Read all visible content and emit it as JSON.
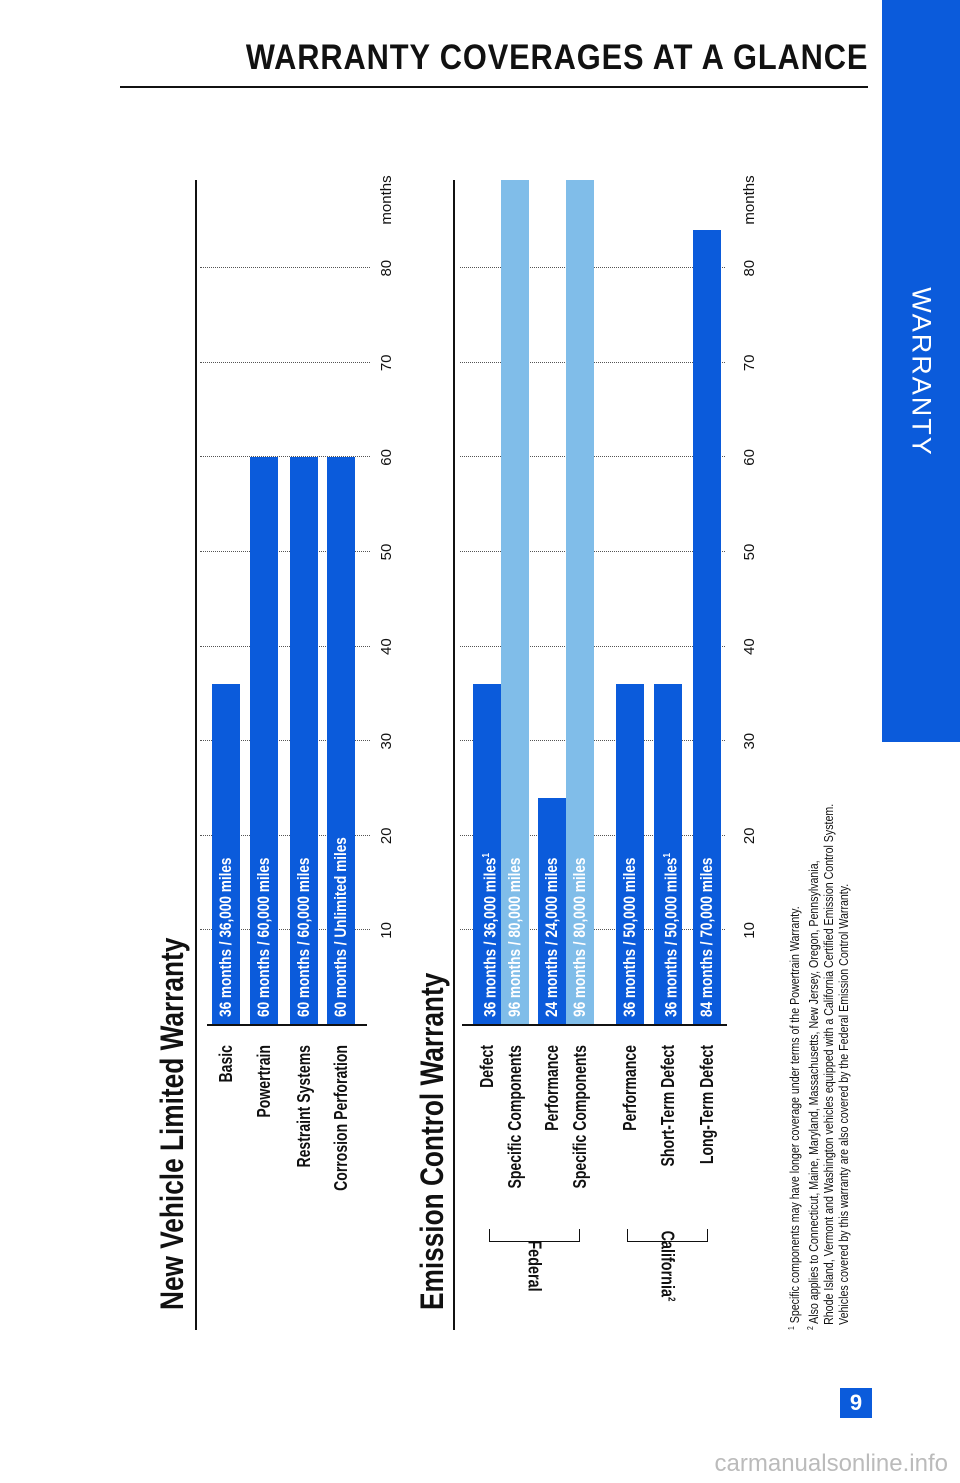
{
  "header": {
    "title": "WARRANTY COVERAGES AT A GLANCE",
    "side_tab": "WARRANTY",
    "page_number": "9"
  },
  "watermark": "carmanualsonline.info",
  "colors": {
    "primary": "#0b5bdb",
    "secondary": "#80bde9"
  },
  "chart_data": [
    {
      "type": "bar",
      "orientation": "horizontal",
      "title": "New Vehicle Limited Warranty",
      "xlabel": "months",
      "xlim": [
        0,
        90
      ],
      "xticks": [
        "10",
        "20",
        "30",
        "40",
        "50",
        "60",
        "70",
        "80"
      ],
      "grid": true,
      "rows": [
        {
          "label": "Basic",
          "months": 36,
          "text": "36 months  /  36,000 miles",
          "note": "",
          "color": "#0b5bdb"
        },
        {
          "label": "Powertrain",
          "months": 60,
          "text": "60 months  /  60,000 miles",
          "note": "",
          "color": "#0b5bdb"
        },
        {
          "label": "Restraint Systems",
          "months": 60,
          "text": "60 months  /  60,000 miles",
          "note": "",
          "color": "#0b5bdb"
        },
        {
          "label": "Corrosion Perforation",
          "months": 60,
          "text": "60 months  /  Unlimited miles",
          "note": "",
          "color": "#0b5bdb"
        }
      ]
    },
    {
      "type": "bar",
      "orientation": "horizontal",
      "title": "Emission Control Warranty",
      "xlabel": "months",
      "xlim": [
        0,
        90
      ],
      "xticks": [
        "10",
        "20",
        "30",
        "40",
        "50",
        "60",
        "70",
        "80"
      ],
      "grid": true,
      "groups": [
        {
          "label": "Federal",
          "note": "",
          "rows": [
            0,
            1,
            2,
            3
          ]
        },
        {
          "label": "California",
          "note": "2",
          "rows": [
            4,
            5,
            6
          ]
        }
      ],
      "rows": [
        {
          "label": "Defect",
          "months": 36,
          "text": "36 months  /  36,000 miles",
          "note": "1",
          "color": "#0b5bdb"
        },
        {
          "label": "Specific Components",
          "months": 96,
          "text": "96 months  /  80,000 miles",
          "note": "",
          "color": "#80bde9"
        },
        {
          "label": "Performance",
          "months": 24,
          "text": "24 months  /  24,000 miles",
          "note": "",
          "color": "#0b5bdb"
        },
        {
          "label": "Specific Components",
          "months": 96,
          "text": "96 months  /  80,000 miles",
          "note": "",
          "color": "#80bde9"
        },
        {
          "label": "Performance",
          "months": 36,
          "text": "36 months  /  50,000 miles",
          "note": "",
          "color": "#0b5bdb"
        },
        {
          "label": "Short-Term Defect",
          "months": 36,
          "text": "36 months  /  50,000 miles",
          "note": "1",
          "color": "#0b5bdb"
        },
        {
          "label": "Long-Term Defect",
          "months": 84,
          "text": "84 months  /  70,000 miles",
          "note": "",
          "color": "#0b5bdb"
        }
      ]
    }
  ],
  "footnotes": [
    {
      "mark": "1",
      "lines": [
        "Specific components may have longer coverage under terms of the Powertrain Warranty."
      ]
    },
    {
      "mark": "2",
      "lines": [
        "Also applies to Connecticut, Maine, Maryland, Massachusetts, New Jersey, Oregon, Pennsylvania,",
        "Rhode Island, Vermont and Washington vehicles equipped with a California Certified Emission Control System.",
        "Vehicles covered by this warranty are also covered by the Federal Emission Control Warranty."
      ]
    }
  ]
}
